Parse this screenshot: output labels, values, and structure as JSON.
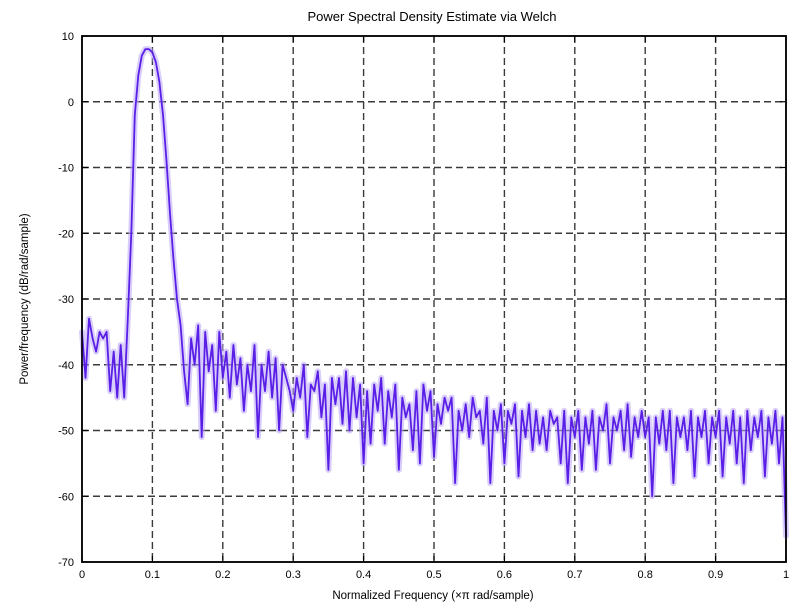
{
  "chart_data": {
    "type": "line",
    "title": "Power Spectral Density Estimate via Welch",
    "xlabel": "Normalized Frequency (×π rad/sample)",
    "ylabel": "Power/frequency (dB/rad/sample)",
    "xlim": [
      0,
      1
    ],
    "ylim": [
      -70,
      10
    ],
    "x_ticks": [
      0,
      0.1,
      0.2,
      0.3,
      0.4,
      0.5,
      0.6,
      0.7,
      0.8,
      0.9,
      1
    ],
    "x_tick_labels": [
      "0",
      "0.1",
      "0.2",
      "0.3",
      "0.4",
      "0.5",
      "0.6",
      "0.7",
      "0.8",
      "0.9",
      "1"
    ],
    "y_ticks": [
      10,
      0,
      -10,
      -20,
      -30,
      -40,
      -50,
      -60,
      -70
    ],
    "y_tick_labels": [
      "10",
      "0",
      "-10",
      "-20",
      "-30",
      "-40",
      "-50",
      "-60",
      "-70"
    ],
    "grid": true,
    "colors": {
      "line": "#5a1fe6",
      "halo": "#b9a6f7",
      "grid": "#3a3a3a"
    },
    "series": [
      {
        "x": [
          0.0,
          0.005,
          0.01,
          0.015,
          0.02,
          0.025,
          0.03,
          0.035,
          0.04,
          0.045,
          0.05,
          0.055,
          0.06,
          0.065,
          0.07,
          0.075,
          0.08,
          0.085,
          0.09,
          0.095,
          0.1,
          0.105,
          0.11,
          0.115,
          0.12,
          0.125,
          0.13,
          0.135,
          0.14,
          0.145,
          0.15,
          0.155,
          0.16,
          0.165,
          0.17,
          0.175,
          0.18,
          0.185,
          0.19,
          0.195,
          0.2,
          0.205,
          0.21,
          0.215,
          0.22,
          0.225,
          0.23,
          0.235,
          0.24,
          0.245,
          0.25,
          0.255,
          0.26,
          0.265,
          0.27,
          0.275,
          0.28,
          0.285,
          0.29,
          0.295,
          0.3,
          0.305,
          0.31,
          0.315,
          0.32,
          0.325,
          0.33,
          0.335,
          0.34,
          0.345,
          0.35,
          0.355,
          0.36,
          0.365,
          0.37,
          0.375,
          0.38,
          0.385,
          0.39,
          0.395,
          0.4,
          0.405,
          0.41,
          0.415,
          0.42,
          0.425,
          0.43,
          0.435,
          0.44,
          0.445,
          0.45,
          0.455,
          0.46,
          0.465,
          0.47,
          0.475,
          0.48,
          0.485,
          0.49,
          0.495,
          0.5,
          0.505,
          0.51,
          0.515,
          0.52,
          0.525,
          0.53,
          0.535,
          0.54,
          0.545,
          0.55,
          0.555,
          0.56,
          0.565,
          0.57,
          0.575,
          0.58,
          0.585,
          0.59,
          0.595,
          0.6,
          0.605,
          0.61,
          0.615,
          0.62,
          0.625,
          0.63,
          0.635,
          0.64,
          0.645,
          0.65,
          0.655,
          0.66,
          0.665,
          0.67,
          0.675,
          0.68,
          0.685,
          0.69,
          0.695,
          0.7,
          0.705,
          0.71,
          0.715,
          0.72,
          0.725,
          0.73,
          0.735,
          0.74,
          0.745,
          0.75,
          0.755,
          0.76,
          0.765,
          0.77,
          0.775,
          0.78,
          0.785,
          0.79,
          0.795,
          0.8,
          0.805,
          0.81,
          0.815,
          0.82,
          0.825,
          0.83,
          0.835,
          0.84,
          0.845,
          0.85,
          0.855,
          0.86,
          0.865,
          0.87,
          0.875,
          0.88,
          0.885,
          0.89,
          0.895,
          0.9,
          0.905,
          0.91,
          0.915,
          0.92,
          0.925,
          0.93,
          0.935,
          0.94,
          0.945,
          0.95,
          0.955,
          0.96,
          0.965,
          0.97,
          0.975,
          0.98,
          0.985,
          0.99,
          0.995,
          1.0
        ],
        "y": [
          -35,
          -42,
          -33,
          -36,
          -38,
          -35,
          -36,
          -35,
          -44,
          -38,
          -45,
          -37,
          -45,
          -33,
          -20,
          -2,
          4,
          7,
          8,
          8,
          7.5,
          6,
          3,
          -2,
          -9,
          -17,
          -24,
          -30,
          -34,
          -41,
          -46,
          -36,
          -40,
          -34,
          -51,
          -35,
          -41,
          -37,
          -47,
          -35,
          -42,
          -38,
          -45,
          -37,
          -43,
          -39,
          -47,
          -40,
          -44,
          -37,
          -51,
          -40,
          -44,
          -38,
          -45,
          -39,
          -50,
          -40,
          -42,
          -44,
          -47,
          -42,
          -45,
          -40,
          -51,
          -43,
          -44,
          -41,
          -48,
          -43,
          -56,
          -42,
          -46,
          -42,
          -49,
          -41,
          -50,
          -42,
          -48,
          -43,
          -55,
          -44,
          -52,
          -43,
          -47,
          -42,
          -52,
          -44,
          -48,
          -43,
          -56,
          -45,
          -48,
          -46,
          -53,
          -44,
          -55,
          -43,
          -47,
          -44,
          -54,
          -46,
          -49,
          -45,
          -47,
          -45,
          -58,
          -47,
          -50,
          -46,
          -51,
          -45,
          -48,
          -47,
          -52,
          -45,
          -58,
          -47,
          -50,
          -46,
          -55,
          -47,
          -49,
          -46,
          -57,
          -47,
          -51,
          -46,
          -53,
          -47,
          -52,
          -48,
          -53,
          -47,
          -49,
          -48,
          -55,
          -47,
          -58,
          -48,
          -51,
          -47,
          -56,
          -48,
          -52,
          -47,
          -56,
          -48,
          -50,
          -46,
          -55,
          -48,
          -50,
          -47,
          -53,
          -46,
          -54,
          -48,
          -51,
          -47,
          -51,
          -48,
          -60,
          -48,
          -52,
          -47,
          -53,
          -47,
          -58,
          -48,
          -51,
          -48,
          -53,
          -47,
          -57,
          -48,
          -51,
          -47,
          -55,
          -48,
          -51,
          -47,
          -57,
          -48,
          -52,
          -47,
          -55,
          -48,
          -58,
          -47,
          -53,
          -48,
          -51,
          -47,
          -57,
          -48,
          -52,
          -47,
          -55,
          -48,
          -66
        ]
      }
    ]
  }
}
